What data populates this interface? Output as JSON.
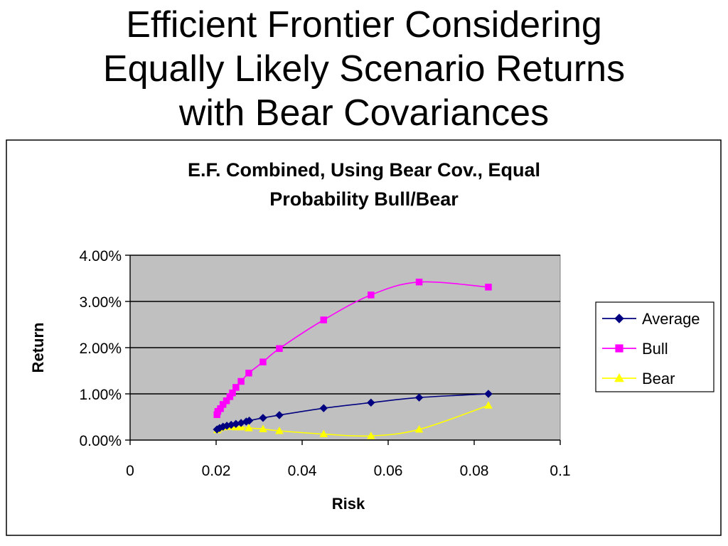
{
  "slide": {
    "title_lines": [
      "Efficient Frontier Considering",
      "Equally Likely Scenario Returns",
      "with Bear Covariances"
    ]
  },
  "chart_data": {
    "type": "line",
    "title_lines": [
      "E.F. Combined, Using Bear Cov., Equal",
      "Probability Bull/Bear"
    ],
    "xlabel": "Risk",
    "ylabel": "Return",
    "xlim": [
      0,
      0.1
    ],
    "ylim": [
      0,
      0.04
    ],
    "x_ticks": [
      0,
      0.02,
      0.04,
      0.06,
      0.08,
      0.1
    ],
    "x_tick_labels": [
      "0",
      "0.02",
      "0.04",
      "0.06",
      "0.08",
      "0.1"
    ],
    "y_ticks": [
      0,
      0.01,
      0.02,
      0.03,
      0.04
    ],
    "y_tick_labels": [
      "0.00%",
      "1.00%",
      "2.00%",
      "3.00%",
      "4.00%"
    ],
    "grid": "horizontal",
    "plot_background": "#C0C0C0",
    "legend_position": "right",
    "series": [
      {
        "name": "Average",
        "color": "#000080",
        "marker": "diamond",
        "points": [
          [
            0.0202,
            0.0023
          ],
          [
            0.0208,
            0.0026
          ],
          [
            0.0216,
            0.0029
          ],
          [
            0.0225,
            0.0031
          ],
          [
            0.0235,
            0.0033
          ],
          [
            0.0246,
            0.0035
          ],
          [
            0.0258,
            0.0037
          ],
          [
            0.027,
            0.004
          ],
          [
            0.0277,
            0.0042
          ],
          [
            0.0309,
            0.0048
          ],
          [
            0.0347,
            0.0054
          ],
          [
            0.045,
            0.0069
          ],
          [
            0.056,
            0.0081
          ],
          [
            0.0672,
            0.0092
          ],
          [
            0.0833,
            0.01
          ]
        ]
      },
      {
        "name": "Bull",
        "color": "#FF00FF",
        "marker": "square",
        "points": [
          [
            0.0202,
            0.0055
          ],
          [
            0.0204,
            0.0062
          ],
          [
            0.021,
            0.0068
          ],
          [
            0.0216,
            0.0077
          ],
          [
            0.0224,
            0.0085
          ],
          [
            0.0232,
            0.0094
          ],
          [
            0.0238,
            0.0102
          ],
          [
            0.0246,
            0.0114
          ],
          [
            0.0258,
            0.0127
          ],
          [
            0.0276,
            0.0145
          ],
          [
            0.0309,
            0.0169
          ],
          [
            0.0347,
            0.0198
          ],
          [
            0.045,
            0.026
          ],
          [
            0.056,
            0.0314
          ],
          [
            0.0672,
            0.0342
          ],
          [
            0.0833,
            0.0331
          ]
        ]
      },
      {
        "name": "Bear",
        "color": "#FFFF00",
        "marker": "triangle",
        "points": [
          [
            0.0203,
            0.0022
          ],
          [
            0.0208,
            0.0026
          ],
          [
            0.0216,
            0.0028
          ],
          [
            0.0225,
            0.0029
          ],
          [
            0.0235,
            0.0029
          ],
          [
            0.0246,
            0.0028
          ],
          [
            0.0258,
            0.0028
          ],
          [
            0.0276,
            0.0026
          ],
          [
            0.0309,
            0.0024
          ],
          [
            0.0347,
            0.002
          ],
          [
            0.045,
            0.0013
          ],
          [
            0.056,
            0.0009
          ],
          [
            0.0672,
            0.0023
          ],
          [
            0.0833,
            0.0075
          ]
        ]
      }
    ]
  }
}
